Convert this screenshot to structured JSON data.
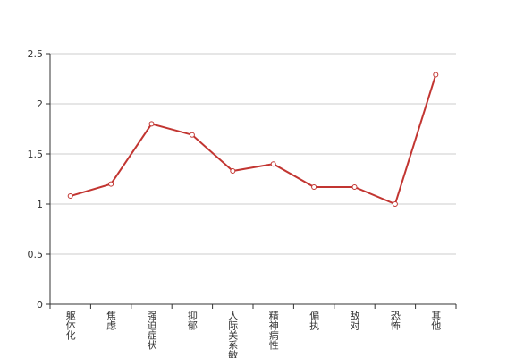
{
  "chart_data": {
    "type": "line",
    "categories": [
      "躯体化",
      "焦虑",
      "强迫症状",
      "抑郁",
      "人际关系敏感",
      "精神病性",
      "偏执",
      "敌对",
      "恐怖",
      "其他"
    ],
    "series": [
      {
        "color": "#c23531",
        "values": [
          1.08,
          1.2,
          1.8,
          1.69,
          1.33,
          1.4,
          1.17,
          1.17,
          1.0,
          2.29
        ]
      }
    ],
    "ylim": [
      0,
      2.5
    ],
    "yticks": [
      0,
      0.5,
      1,
      1.5,
      2,
      2.5
    ],
    "grid": true
  }
}
